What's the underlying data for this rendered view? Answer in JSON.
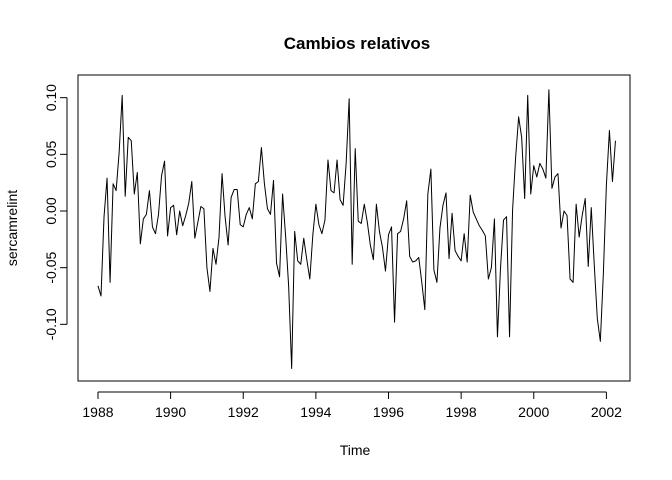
{
  "chart_data": {
    "type": "line",
    "title": "Cambios relativos",
    "xlabel": "Time",
    "ylabel": "sercamrelint",
    "xlim": [
      1987.45,
      2002.65
    ],
    "ylim": [
      -0.15,
      0.12
    ],
    "x_ticks": [
      1988,
      1990,
      1992,
      1994,
      1996,
      1998,
      2000,
      2002
    ],
    "x_tick_labels": [
      "1988",
      "1990",
      "1992",
      "1994",
      "1996",
      "1998",
      "2000",
      "2002"
    ],
    "y_ticks": [
      -0.1,
      -0.05,
      0.0,
      0.05,
      0.1
    ],
    "y_tick_labels": [
      "-0.10",
      "-0.05",
      "0.00",
      "0.05",
      "0.10"
    ],
    "grid": false,
    "series": [
      {
        "x_start": 1988.0,
        "frequency": 12,
        "values": [
          -0.066,
          -0.075,
          -0.005,
          0.029,
          -0.063,
          0.024,
          0.018,
          0.052,
          0.102,
          0.013,
          0.065,
          0.062,
          0.015,
          0.034,
          -0.029,
          -0.007,
          -0.003,
          0.018,
          -0.014,
          -0.02,
          -0.003,
          0.031,
          0.044,
          -0.022,
          0.003,
          0.005,
          -0.021,
          0.0,
          -0.013,
          -0.004,
          0.007,
          0.026,
          -0.024,
          -0.01,
          0.004,
          0.002,
          -0.05,
          -0.071,
          -0.033,
          -0.047,
          -0.023,
          0.033,
          -0.005,
          -0.03,
          0.012,
          0.019,
          0.019,
          -0.012,
          -0.014,
          -0.003,
          0.003,
          -0.007,
          0.024,
          0.026,
          0.056,
          0.024,
          0.002,
          -0.003,
          0.027,
          -0.046,
          -0.058,
          0.015,
          -0.022,
          -0.066,
          -0.139,
          -0.018,
          -0.044,
          -0.047,
          -0.024,
          -0.043,
          -0.06,
          -0.021,
          0.006,
          -0.012,
          -0.02,
          -0.008,
          0.045,
          0.018,
          0.016,
          0.045,
          0.01,
          0.005,
          0.042,
          0.099,
          -0.047,
          0.055,
          -0.009,
          -0.011,
          0.006,
          -0.01,
          -0.03,
          -0.043,
          0.006,
          -0.018,
          -0.032,
          -0.053,
          -0.021,
          -0.014,
          -0.098,
          -0.02,
          -0.018,
          -0.007,
          0.009,
          -0.04,
          -0.045,
          -0.044,
          -0.041,
          -0.063,
          -0.087,
          0.015,
          0.037,
          -0.052,
          -0.063,
          -0.015,
          0.005,
          0.016,
          -0.042,
          -0.002,
          -0.035,
          -0.04,
          -0.044,
          -0.02,
          -0.045,
          0.014,
          -0.001,
          -0.007,
          -0.013,
          -0.017,
          -0.022,
          -0.06,
          -0.05,
          -0.007,
          -0.111,
          -0.051,
          -0.008,
          -0.005,
          -0.111,
          0.001,
          0.047,
          0.083,
          0.065,
          0.011,
          0.102,
          0.015,
          0.04,
          0.03,
          0.042,
          0.037,
          0.029,
          0.107,
          0.02,
          0.03,
          0.033,
          -0.015,
          0.0,
          -0.004,
          -0.06,
          -0.063,
          0.006,
          -0.023,
          -0.004,
          0.011,
          -0.049,
          0.003,
          -0.048,
          -0.095,
          -0.115,
          -0.055,
          0.023,
          0.071,
          0.026,
          0.062
        ]
      }
    ]
  }
}
